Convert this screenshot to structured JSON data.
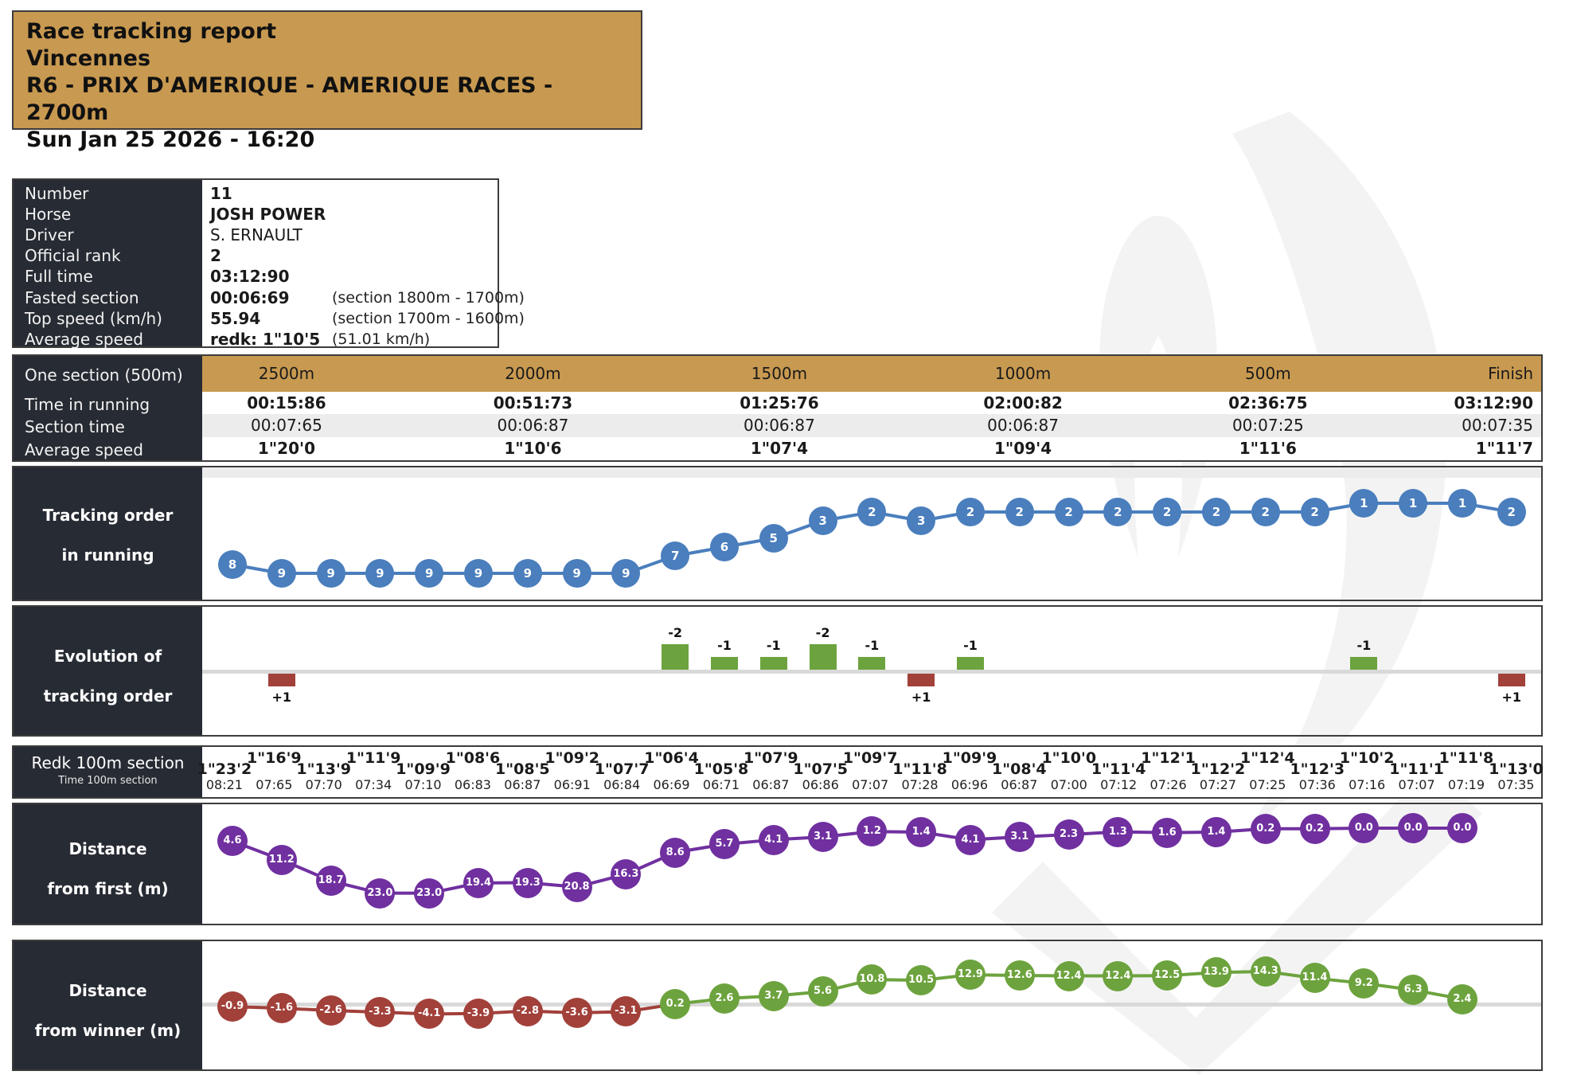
{
  "header": {
    "line1": "Race tracking report",
    "line2": "Vincennes",
    "line3": "R6 - PRIX D'AMERIQUE - AMERIQUE RACES - 2700m",
    "line4": "Sun Jan 25 2026 - 16:20"
  },
  "info": {
    "rows": [
      {
        "label": "Number",
        "value": "11",
        "bold": true
      },
      {
        "label": "Horse",
        "value": "JOSH POWER",
        "bold": true
      },
      {
        "label": "Driver",
        "value": "S. ERNAULT",
        "bold": false
      },
      {
        "label": "Official rank",
        "value": "2",
        "bold": true
      },
      {
        "label": "Full time",
        "value": "03:12:90",
        "bold": true
      },
      {
        "label": "Fasted section",
        "value": "00:06:69",
        "bold": true,
        "note": "(section 1800m - 1700m)"
      },
      {
        "label": "Top speed (km/h)",
        "value": "55.94",
        "bold": true,
        "note": "(section 1700m - 1600m)"
      },
      {
        "label": "Average speed",
        "value": "redk: 1\"10'5",
        "bold": true,
        "note": "(51.01 km/h)"
      }
    ]
  },
  "section_table": {
    "row_label": "One section (500m)",
    "columns": [
      "2500m",
      "2000m",
      "1500m",
      "1000m",
      "500m",
      "Finish"
    ],
    "rows": [
      {
        "label": "Time in running",
        "bold": true,
        "values": [
          "00:15:86",
          "00:51:73",
          "01:25:76",
          "02:00:82",
          "02:36:75",
          "03:12:90"
        ]
      },
      {
        "label": "Section time",
        "bold": false,
        "values": [
          "00:07:65",
          "00:06:87",
          "00:06:87",
          "00:06:87",
          "00:07:25",
          "00:07:35"
        ]
      },
      {
        "label": "Average speed",
        "bold": true,
        "values": [
          "1\"20'0",
          "1\"10'6",
          "1\"07'4",
          "1\"09'4",
          "1\"11'6",
          "1\"11'7"
        ]
      }
    ]
  },
  "colors": {
    "tan": "#c89950",
    "panel_dark": "#272b33",
    "blue": "#4a7ebd",
    "purple": "#7030a0",
    "green": "#6da33e",
    "red": "#a2403a",
    "row_gray": "#ececec",
    "axis_gray": "#d9d9d9"
  },
  "chart_data": [
    {
      "id": "tracking",
      "type": "line",
      "title": "Tracking order in running",
      "label_lines": [
        "Tracking order",
        "in running"
      ],
      "values": [
        8,
        9,
        9,
        9,
        9,
        9,
        9,
        9,
        9,
        7,
        6,
        5,
        3,
        2,
        3,
        2,
        2,
        2,
        2,
        2,
        2,
        2,
        2,
        1,
        1,
        1,
        2
      ],
      "ylim": [
        1,
        9
      ],
      "point_color": "#4a7ebd",
      "grid": false,
      "legend": "none"
    },
    {
      "id": "evolution",
      "type": "bar",
      "title": "Evolution of tracking order",
      "label_lines": [
        "Evolution of",
        "tracking order"
      ],
      "bars": [
        {
          "index": 1,
          "value": 1,
          "label": "+1"
        },
        {
          "index": 9,
          "value": -2,
          "label": "-2"
        },
        {
          "index": 10,
          "value": -1,
          "label": "-1"
        },
        {
          "index": 11,
          "value": -1,
          "label": "-1"
        },
        {
          "index": 12,
          "value": -2,
          "label": "-2"
        },
        {
          "index": 13,
          "value": -1,
          "label": "-1"
        },
        {
          "index": 14,
          "value": 1,
          "label": "+1"
        },
        {
          "index": 15,
          "value": -1,
          "label": "-1"
        },
        {
          "index": 23,
          "value": -1,
          "label": "-1"
        },
        {
          "index": 26,
          "value": 1,
          "label": "+1"
        }
      ],
      "positive_color": "#a2403a",
      "negative_color": "#6da33e"
    },
    {
      "id": "redk",
      "type": "table",
      "label_lines": [
        "Redk 100m section",
        "Time 100m section"
      ],
      "redk": [
        "1\"23'2",
        "1\"16'9",
        "1\"13'9",
        "1\"11'9",
        "1\"09'9",
        "1\"08'6",
        "1\"08'5",
        "1\"09'2",
        "1\"07'7",
        "1\"06'4",
        "1\"05'8",
        "1\"07'9",
        "1\"07'5",
        "1\"09'7",
        "1\"11'8",
        "1\"09'9",
        "1\"08'4",
        "1\"10'0",
        "1\"11'4",
        "1\"12'1",
        "1\"12'2",
        "1\"12'4",
        "1\"12'3",
        "1\"10'2",
        "1\"11'1",
        "1\"11'8",
        "1\"13'0"
      ],
      "times": [
        "08:21",
        "07:65",
        "07:70",
        "07:34",
        "07:10",
        "06:83",
        "06:87",
        "06:91",
        "06:84",
        "06:69",
        "06:71",
        "06:87",
        "06:86",
        "07:07",
        "07:28",
        "06:96",
        "06:87",
        "07:00",
        "07:12",
        "07:26",
        "07:27",
        "07:25",
        "07:36",
        "07:16",
        "07:07",
        "07:19",
        "07:35"
      ]
    },
    {
      "id": "dist_first",
      "type": "line",
      "title": "Distance from first (m)",
      "label_lines": [
        "Distance",
        "from first (m)"
      ],
      "values": [
        4.6,
        11.2,
        18.7,
        23.0,
        23.0,
        19.4,
        19.3,
        20.8,
        16.3,
        8.6,
        5.7,
        4.1,
        3.1,
        1.2,
        1.4,
        4.1,
        3.1,
        2.3,
        1.3,
        1.6,
        1.4,
        0.2,
        0.2,
        0.0,
        0.0,
        0.0
      ],
      "point_color": "#7030a0",
      "inverted_axis": true,
      "grid": false
    },
    {
      "id": "dist_winner",
      "type": "line",
      "title": "Distance from winner (m)",
      "label_lines": [
        "Distance",
        "from winner (m)"
      ],
      "values": [
        -0.9,
        -1.6,
        -2.6,
        -3.3,
        -4.1,
        -3.9,
        -2.8,
        -3.6,
        -3.1,
        0.2,
        2.6,
        3.7,
        5.6,
        10.8,
        10.5,
        12.9,
        12.6,
        12.4,
        12.4,
        12.5,
        13.9,
        14.3,
        11.4,
        9.2,
        6.3,
        2.4
      ],
      "positive_color": "#6da33e",
      "negative_color": "#a2403a",
      "zero_line": true
    }
  ]
}
